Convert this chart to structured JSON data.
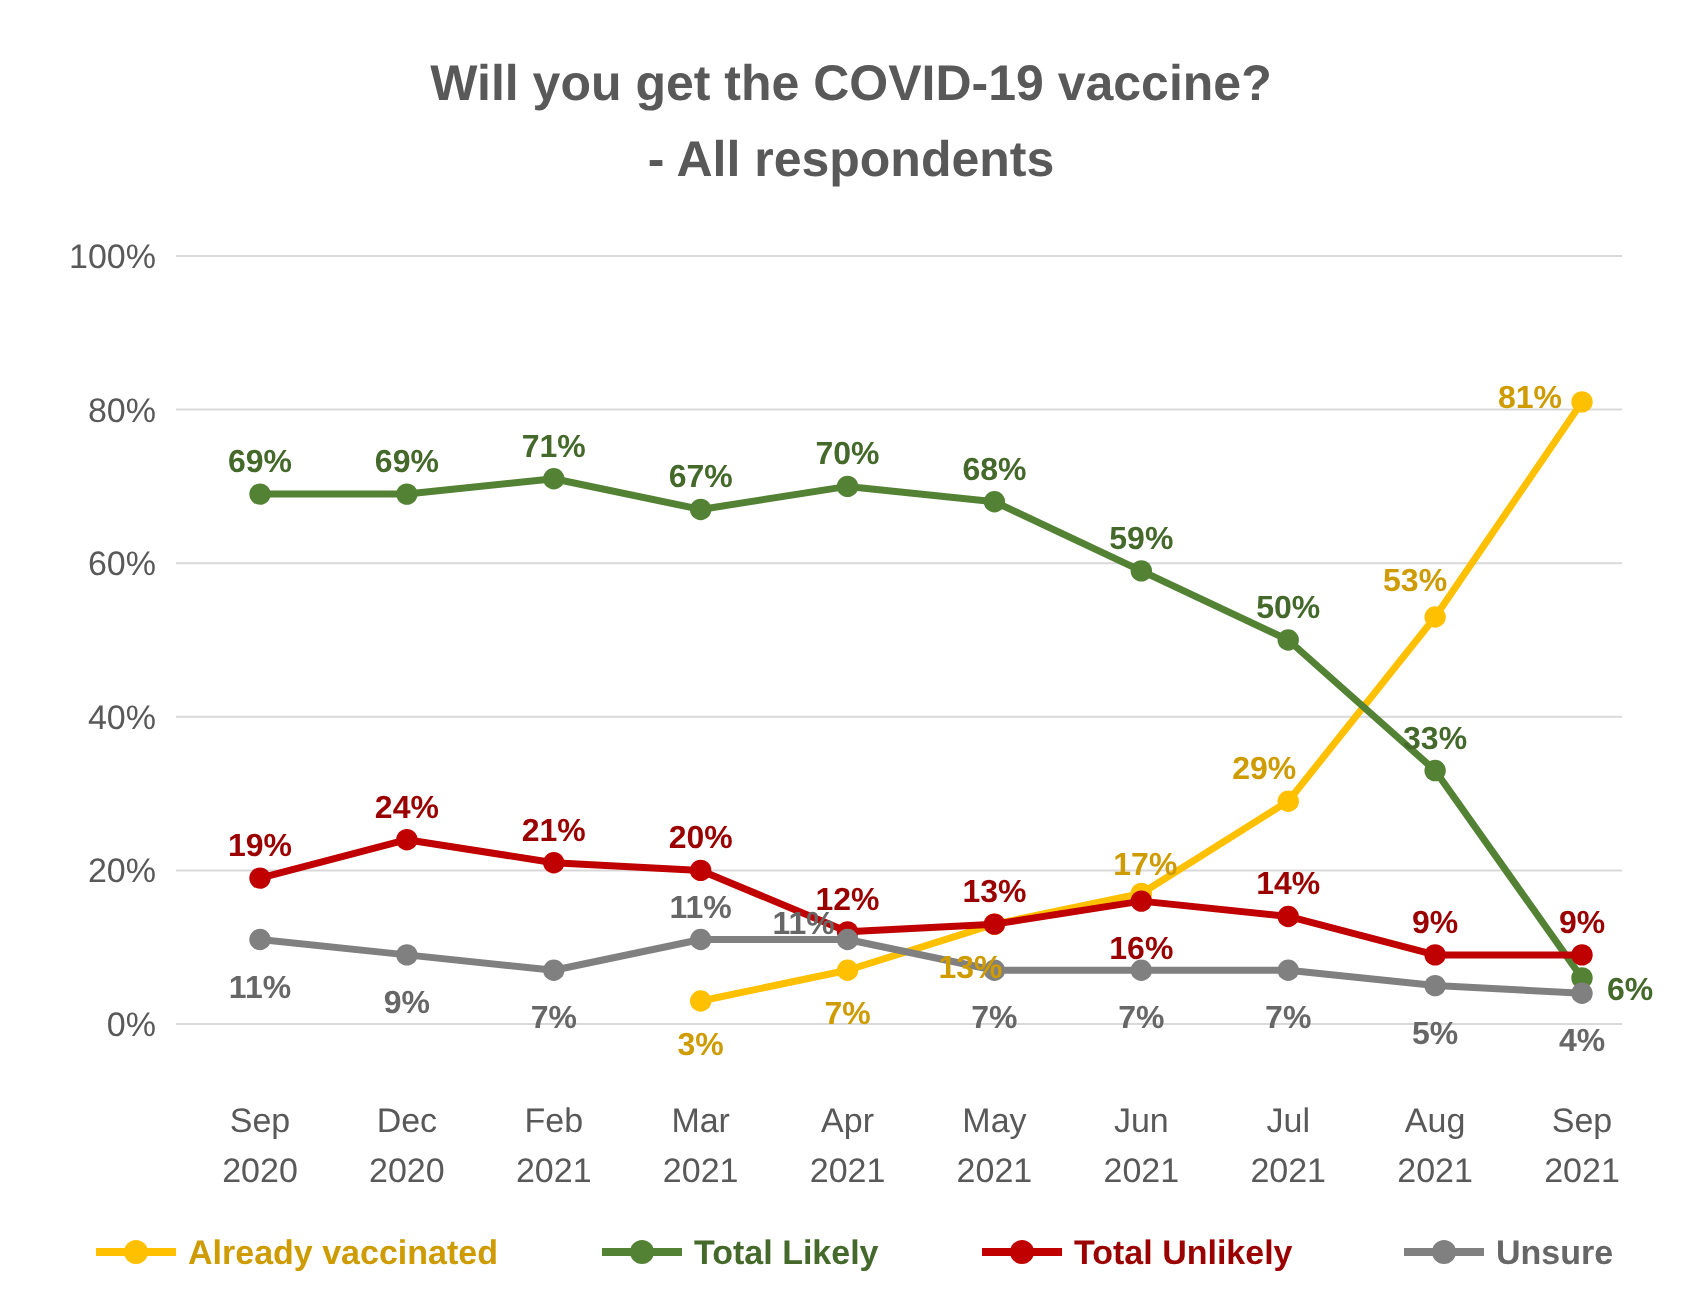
{
  "chart_data": {
    "type": "line",
    "title": "Will you get the COVID-19 vaccine?",
    "subtitle": "- All respondents",
    "categories": [
      "Sep 2020",
      "Dec 2020",
      "Feb 2021",
      "Mar 2021",
      "Apr 2021",
      "May 2021",
      "Jun 2021",
      "Jul 2021",
      "Aug 2021",
      "Sep 2021"
    ],
    "series": [
      {
        "name": "Already vaccinated",
        "color": "#ffc000",
        "values": [
          null,
          null,
          null,
          3,
          7,
          13,
          17,
          29,
          53,
          81
        ],
        "value_labels": [
          null,
          null,
          null,
          "3%",
          "7%",
          "13%",
          "17%",
          "29%",
          "53%",
          "81%"
        ]
      },
      {
        "name": "Total Likely",
        "color": "#548235",
        "values": [
          69,
          69,
          71,
          67,
          70,
          68,
          59,
          50,
          33,
          6
        ],
        "value_labels": [
          "69%",
          "69%",
          "71%",
          "67%",
          "70%",
          "68%",
          "59%",
          "50%",
          "33%",
          "6%"
        ]
      },
      {
        "name": "Total Unlikely",
        "color": "#c00000",
        "values": [
          19,
          24,
          21,
          20,
          12,
          13,
          16,
          14,
          9,
          9
        ],
        "value_labels": [
          "19%",
          "24%",
          "21%",
          "20%",
          "12%",
          "13%",
          "16%",
          "14%",
          "9%",
          "9%"
        ]
      },
      {
        "name": "Unsure",
        "color": "#808080",
        "values": [
          11,
          9,
          7,
          11,
          11,
          7,
          7,
          7,
          5,
          4
        ],
        "value_labels": [
          "11%",
          "9%",
          "7%",
          "11%",
          "11%",
          "7%",
          "7%",
          "7%",
          "5%",
          "4%"
        ]
      }
    ],
    "ylim": [
      0,
      100
    ],
    "yticks": [
      {
        "value": 0,
        "label": "0%"
      },
      {
        "value": 20,
        "label": "20%"
      },
      {
        "value": 40,
        "label": "40%"
      },
      {
        "value": 60,
        "label": "60%"
      },
      {
        "value": 80,
        "label": "80%"
      },
      {
        "value": 100,
        "label": "100%"
      }
    ],
    "grid": "y",
    "legend": "bottom",
    "marker": "circle",
    "line_style": "solid"
  }
}
